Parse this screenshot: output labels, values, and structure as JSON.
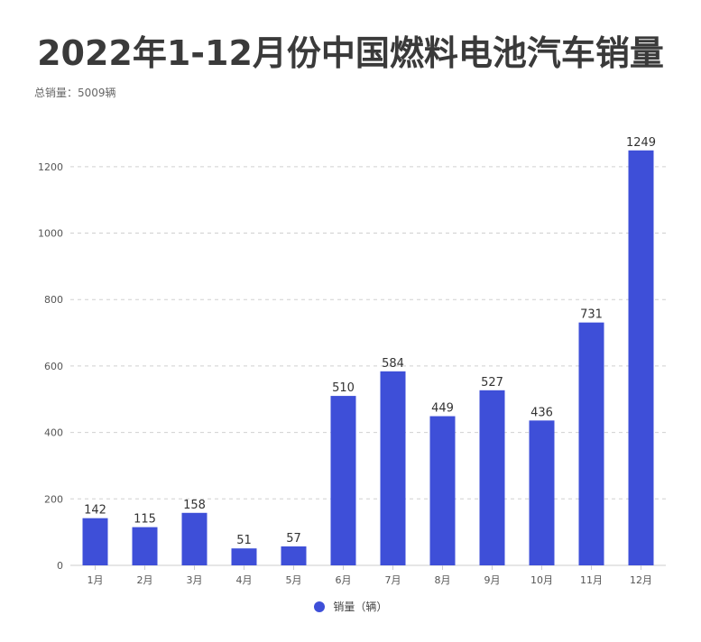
{
  "chart_data": {
    "type": "bar",
    "title": "2022年1-12月份中国燃料电池汽车销量",
    "subtitle": "总销量：5009辆",
    "categories": [
      "1月",
      "2月",
      "3月",
      "4月",
      "5月",
      "6月",
      "7月",
      "8月",
      "9月",
      "10月",
      "11月",
      "12月"
    ],
    "series": [
      {
        "name": "销量（辆）",
        "values": [
          142,
          115,
          158,
          51,
          57,
          510,
          584,
          449,
          527,
          436,
          731,
          1249
        ]
      }
    ],
    "ylim": [
      0,
      1300
    ],
    "yticks": [
      0,
      200,
      400,
      600,
      800,
      1000,
      1200
    ],
    "grid": true,
    "legend": "bottom-center",
    "colors": {
      "bar": "#3e4fd8",
      "grid": "#d0d0d0",
      "axis": "#cccccc"
    }
  }
}
